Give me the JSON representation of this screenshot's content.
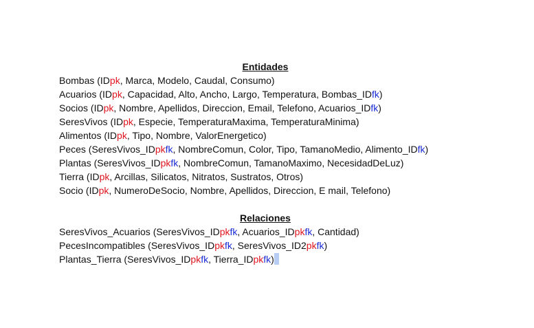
{
  "colors": {
    "pk": "#e0141e",
    "fk": "#1a2bd6",
    "text": "#111111",
    "selection": "#b7cdf3"
  },
  "entidades": {
    "title": "Entidades",
    "lines": [
      [
        {
          "t": "Bombas (ID",
          "c": ""
        },
        {
          "t": "pk",
          "c": "red"
        },
        {
          "t": ", Marca, Modelo, Caudal, Consumo)",
          "c": ""
        }
      ],
      [
        {
          "t": "Acuarios (ID",
          "c": ""
        },
        {
          "t": "pk",
          "c": "red"
        },
        {
          "t": ", Capacidad, Alto, Ancho, Largo, Temperatura, Bombas_ID",
          "c": ""
        },
        {
          "t": "fk",
          "c": "blue"
        },
        {
          "t": ")",
          "c": ""
        }
      ],
      [
        {
          "t": "Socios (ID",
          "c": ""
        },
        {
          "t": "pk",
          "c": "red"
        },
        {
          "t": ", Nombre, Apellidos, Direccion, Email, Telefono, Acuarios_ID",
          "c": ""
        },
        {
          "t": "fk",
          "c": "blue"
        },
        {
          "t": ")",
          "c": ""
        }
      ],
      [
        {
          "t": "SeresVivos (ID",
          "c": ""
        },
        {
          "t": "pk",
          "c": "red"
        },
        {
          "t": ", Especie, TemperaturaMaxima, TemperaturaMinima)",
          "c": ""
        }
      ],
      [
        {
          "t": "Alimentos (ID",
          "c": ""
        },
        {
          "t": "pk",
          "c": "red"
        },
        {
          "t": ", Tipo, Nombre, ValorEnergetico)",
          "c": ""
        }
      ],
      [
        {
          "t": "Peces (SeresVivos_ID",
          "c": ""
        },
        {
          "t": "pk",
          "c": "red"
        },
        {
          "t": "fk",
          "c": "blue"
        },
        {
          "t": ", NombreComun, Color, Tipo, TamanoMedio, Alimento_ID",
          "c": ""
        },
        {
          "t": "fk",
          "c": "blue"
        },
        {
          "t": ")",
          "c": ""
        }
      ],
      [
        {
          "t": "Plantas (SeresVivos_ID",
          "c": ""
        },
        {
          "t": "pk",
          "c": "red"
        },
        {
          "t": "fk",
          "c": "blue"
        },
        {
          "t": ", NombreComun, TamanoMaximo, NecesidadDeLuz)",
          "c": ""
        }
      ],
      [
        {
          "t": "Tierra (ID",
          "c": ""
        },
        {
          "t": "pk",
          "c": "red"
        },
        {
          "t": ", Arcillas, Silicatos, Nitratos, Sustratos, Otros)",
          "c": ""
        }
      ],
      [
        {
          "t": "Socio (ID",
          "c": ""
        },
        {
          "t": "pk",
          "c": "red"
        },
        {
          "t": ", NumeroDeSocio, Nombre, Apellidos, Direccion, E mail, Telefono)",
          "c": ""
        }
      ]
    ]
  },
  "relaciones": {
    "title": "Relaciones",
    "lines": [
      [
        {
          "t": "SeresVivos_Acuarios (SeresVivos_ID",
          "c": ""
        },
        {
          "t": "pk",
          "c": "red"
        },
        {
          "t": "fk",
          "c": "blue"
        },
        {
          "t": ", Acuarios_ID",
          "c": ""
        },
        {
          "t": "pk",
          "c": "red"
        },
        {
          "t": "fk",
          "c": "blue"
        },
        {
          "t": ", Cantidad)",
          "c": ""
        }
      ],
      [
        {
          "t": "PecesIncompatibles (SeresVivos_ID",
          "c": ""
        },
        {
          "t": "pk",
          "c": "red"
        },
        {
          "t": "fk",
          "c": "blue"
        },
        {
          "t": ", SeresVivos_ID2",
          "c": ""
        },
        {
          "t": "pk",
          "c": "red"
        },
        {
          "t": "fk",
          "c": "blue"
        },
        {
          "t": ")",
          "c": ""
        }
      ],
      [
        {
          "t": "Plantas_Tierra (SeresVivos_ID",
          "c": ""
        },
        {
          "t": "pk",
          "c": "red"
        },
        {
          "t": "fk",
          "c": "blue"
        },
        {
          "t": ", Tierra_ID",
          "c": ""
        },
        {
          "t": "pk",
          "c": "red"
        },
        {
          "t": "fk",
          "c": "blue"
        },
        {
          "t": ")",
          "c": ""
        }
      ]
    ]
  }
}
